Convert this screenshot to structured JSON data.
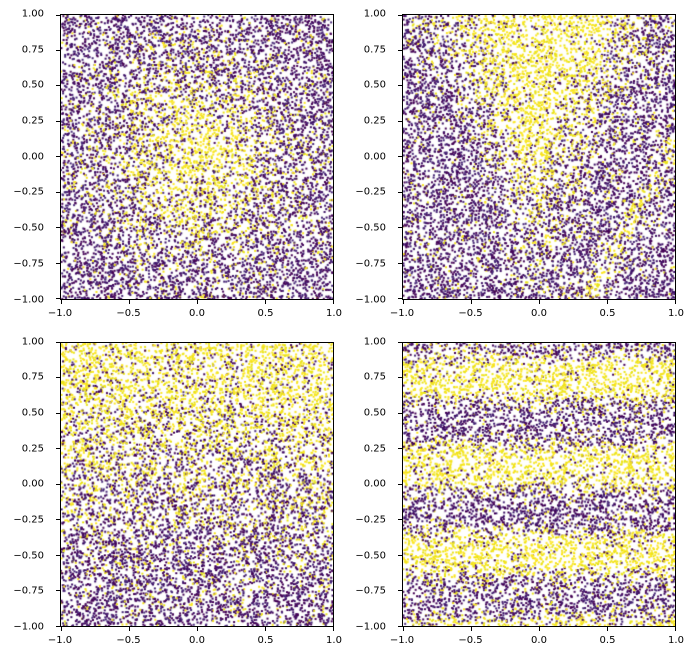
{
  "figure": {
    "background": "#ffffff",
    "spine_color": "#000000",
    "tick_label_color": "#000000"
  },
  "chart_data": [
    {
      "id": "top-left",
      "type": "scatter",
      "title": "",
      "xlabel": "",
      "ylabel": "",
      "xlim": [
        -1,
        1
      ],
      "ylim": [
        -1,
        1
      ],
      "xticks": [
        "−1.0",
        "−0.5",
        "0.0",
        "0.5",
        "1.0"
      ],
      "xtick_values": [
        -1,
        -0.5,
        0,
        0.5,
        1
      ],
      "yticks": [
        "1.00",
        "0.75",
        "0.50",
        "0.25",
        "0.00",
        "−0.25",
        "−0.50",
        "−0.75",
        "−1.00"
      ],
      "ytick_values": [
        1,
        0.75,
        0.5,
        0.25,
        0,
        -0.25,
        -0.5,
        -0.75,
        -1
      ],
      "grid": false,
      "legend": null,
      "n_points": 9500,
      "seed": 1,
      "marker_size_px": 2,
      "pattern": {
        "name": "radial",
        "r0": 0.45,
        "k": 5.0
      },
      "noise": {
        "base": 0.07,
        "scale": 0.86
      },
      "class_colors": {
        "positive": [
          "#fde725",
          "#f5e31c",
          "#e9e419"
        ],
        "negative": [
          "#440154",
          "#45065a",
          "#3c0f66",
          "#482878"
        ]
      },
      "description": "Binary-labeled uniform random scatter on [-1,1]^2; yellow class concentrated in a circular blob centered at the origin (radius ~0.5), dark purple elsewhere, with label noise speckle."
    },
    {
      "id": "top-right",
      "type": "scatter",
      "title": "",
      "xlabel": "",
      "ylabel": "",
      "xlim": [
        -1,
        1
      ],
      "ylim": [
        -1,
        1
      ],
      "xticks": [
        "−1.0",
        "−0.5",
        "0.0",
        "0.5",
        "1.0"
      ],
      "xtick_values": [
        -1,
        -0.5,
        0,
        0.5,
        1
      ],
      "yticks": [
        "1.00",
        "0.75",
        "0.50",
        "0.25",
        "0.00",
        "−0.25",
        "−0.50",
        "−0.75",
        "−1.00"
      ],
      "ytick_values": [
        1,
        0.75,
        0.5,
        0.25,
        0,
        -0.25,
        -0.5,
        -0.75,
        -1
      ],
      "grid": false,
      "legend": null,
      "n_points": 9500,
      "seed": 2,
      "marker_size_px": 2,
      "pattern": {
        "name": "cone",
        "slope": 2.0,
        "intercept": -0.35,
        "k": 3.5,
        "streak": {
          "slope": 1.64,
          "intercept": -1.57,
          "width": 0.09,
          "strength": 0.75
        }
      },
      "noise": {
        "base": 0.07,
        "scale": 0.86
      },
      "class_colors": {
        "positive": [
          "#fde725",
          "#f5e31c",
          "#e9e419"
        ],
        "negative": [
          "#440154",
          "#45065a",
          "#3c0f66",
          "#482878"
        ]
      },
      "description": "Binary-labeled uniform random scatter; yellow class fills a V-shaped wedge opening upward from apex near (0,-0.35), plus a faint diagonal yellow streak toward the lower-right corner."
    },
    {
      "id": "bottom-left",
      "type": "scatter",
      "title": "",
      "xlabel": "",
      "ylabel": "",
      "xlim": [
        -1,
        1
      ],
      "ylim": [
        -1,
        1
      ],
      "xticks": [
        "−1.0",
        "−0.5",
        "0.0",
        "0.5",
        "1.0"
      ],
      "xtick_values": [
        -1,
        -0.5,
        0,
        0.5,
        1
      ],
      "yticks": [
        "1.00",
        "0.75",
        "0.50",
        "0.25",
        "0.00",
        "−0.25",
        "−0.50",
        "−0.75",
        "−1.00"
      ],
      "ytick_values": [
        1,
        0.75,
        0.5,
        0.25,
        0,
        -0.25,
        -0.5,
        -0.75,
        -1
      ],
      "grid": false,
      "legend": null,
      "n_points": 9500,
      "seed": 3,
      "marker_size_px": 2,
      "pattern": {
        "name": "vertical_gradient",
        "y0": 0.15,
        "k": 2.6
      },
      "noise": {
        "base": 0.07,
        "scale": 0.86
      },
      "class_colors": {
        "positive": [
          "#fde725",
          "#f5e31c",
          "#e9e419"
        ],
        "negative": [
          "#440154",
          "#45065a",
          "#3c0f66",
          "#482878"
        ]
      },
      "description": "Binary-labeled uniform random scatter; probability of the yellow class increases with y, so yellow dominates the top of the square and dark purple dominates the bottom."
    },
    {
      "id": "bottom-right",
      "type": "scatter",
      "title": "",
      "xlabel": "",
      "ylabel": "",
      "xlim": [
        -1,
        1
      ],
      "ylim": [
        -1,
        1
      ],
      "xticks": [
        "−1.0",
        "−0.5",
        "0.0",
        "0.5",
        "1.0"
      ],
      "xtick_values": [
        -1,
        -0.5,
        0,
        0.5,
        1
      ],
      "yticks": [
        "1.00",
        "0.75",
        "0.50",
        "0.25",
        "0.00",
        "−0.25",
        "−0.50",
        "−0.75",
        "−1.00"
      ],
      "ytick_values": [
        1,
        0.75,
        0.5,
        0.25,
        0,
        -0.25,
        -0.5,
        -0.75,
        -1
      ],
      "grid": false,
      "legend": null,
      "n_points": 9500,
      "seed": 4,
      "marker_size_px": 2,
      "pattern": {
        "name": "horizontal_bands",
        "freq": 10.1,
        "phase": 0.75,
        "k": 3.2
      },
      "noise": {
        "base": 0.07,
        "scale": 0.86
      },
      "class_colors": {
        "positive": [
          "#fde725",
          "#f5e31c",
          "#e9e419"
        ],
        "negative": [
          "#440154",
          "#45065a",
          "#3c0f66",
          "#482878"
        ]
      },
      "description": "Binary-labeled uniform random scatter; yellow class forms horizontal bands centered near y = 0.75, 0.13 and -0.50 (period ~0.62), with a partial band at the bottom edge."
    }
  ]
}
